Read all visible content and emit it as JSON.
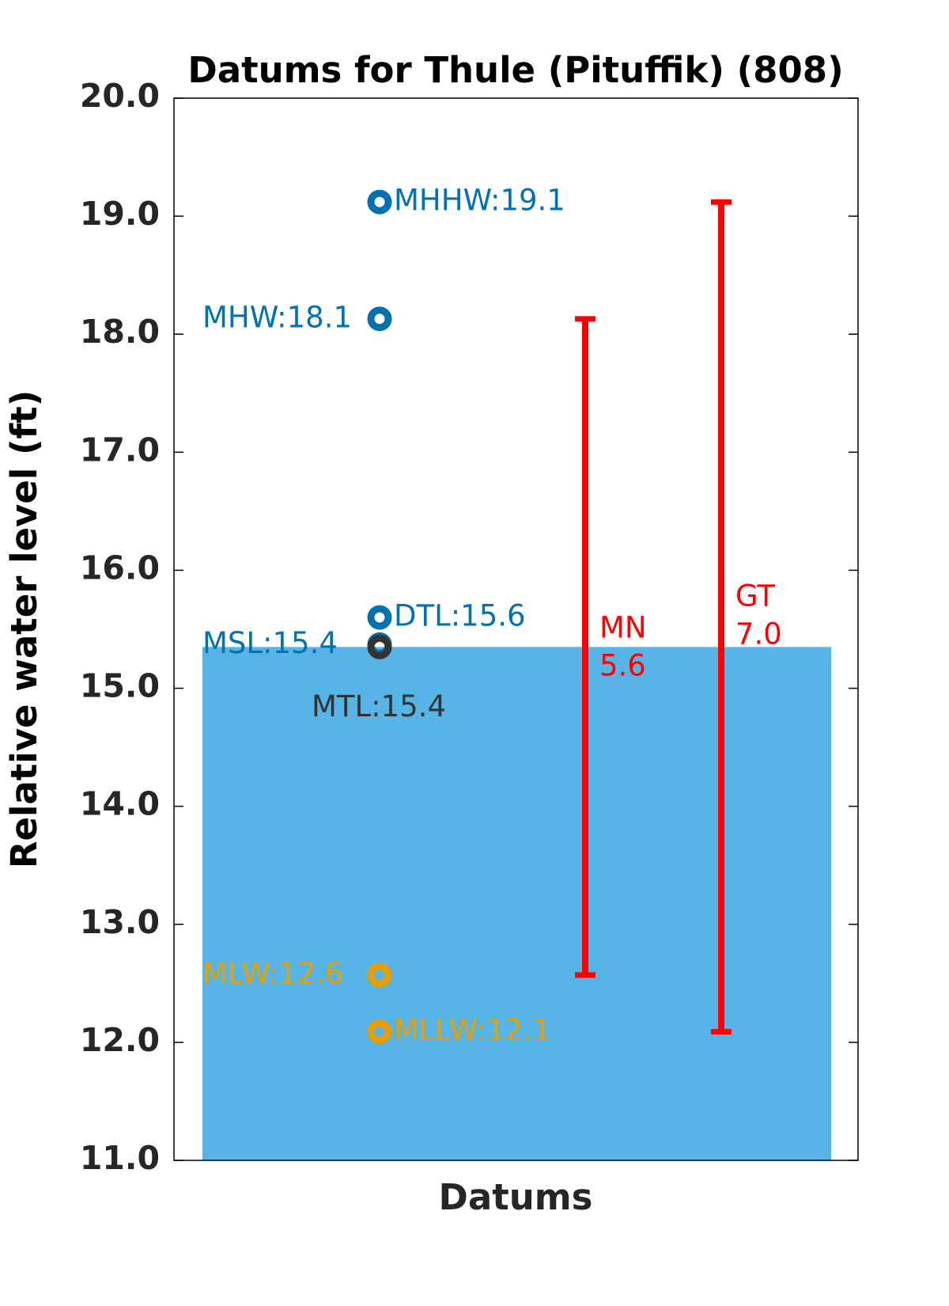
{
  "chart_data": {
    "type": "datum",
    "title": "Datums for Thule (Pituffik) (808)",
    "x_label": "Datums",
    "y_label": "Relative water level (ft)",
    "ylim": [
      11,
      20
    ],
    "yticks": [
      {
        "value": 11,
        "label": "11.0"
      },
      {
        "value": 12,
        "label": "12.0"
      },
      {
        "value": 13,
        "label": "13.0"
      },
      {
        "value": 14,
        "label": "14.0"
      },
      {
        "value": 15,
        "label": "15.0"
      },
      {
        "value": 16,
        "label": "16.0"
      },
      {
        "value": 17,
        "label": "17.0"
      },
      {
        "value": 18,
        "label": "18.0"
      },
      {
        "value": 19,
        "label": "19.0"
      },
      {
        "value": 20,
        "label": "20.0"
      }
    ],
    "bar": {
      "value": 15.35,
      "color": "#56b4e6"
    },
    "points": [
      {
        "value": 19.12,
        "label": "MHHW:19.1",
        "color": "#0072b2"
      },
      {
        "value": 18.13,
        "label": "MHW:18.1",
        "color": "#0072b2"
      },
      {
        "value": 15.6,
        "label": "DTL:15.6",
        "color": "#0072b2"
      },
      {
        "value": 15.37,
        "label": "MSL:15.4",
        "color": "#0072b2"
      },
      {
        "value": 15.35,
        "label": "MTL:15.4",
        "color": "#333333"
      },
      {
        "value": 12.57,
        "label": "MLW:12.6",
        "color": "#e69f00"
      },
      {
        "value": 12.09,
        "label": "MLLW:12.1",
        "color": "#e69f00"
      }
    ],
    "ranges": [
      {
        "name": "MN",
        "low": 12.57,
        "high": 18.13,
        "value": 5.56,
        "value_label": "5.6",
        "color": "#ff0000"
      },
      {
        "name": "GT",
        "low": 12.09,
        "high": 19.12,
        "value": 7.03,
        "value_label": "7.0",
        "color": "#ff0000"
      }
    ]
  }
}
